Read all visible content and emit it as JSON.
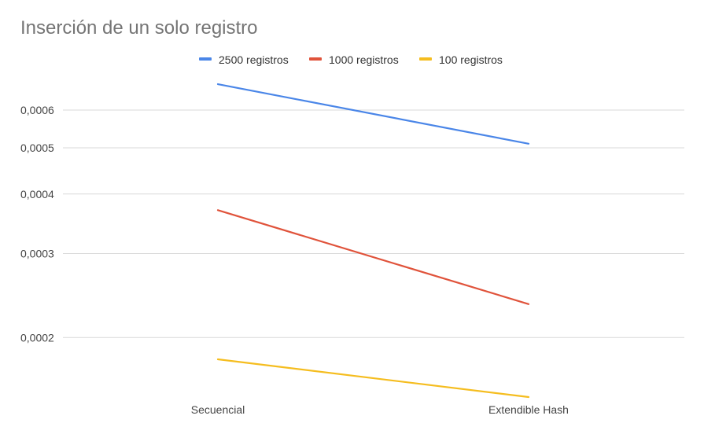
{
  "chart_data": {
    "type": "line",
    "title": "Inserción de un solo registro",
    "xlabel": "",
    "ylabel": "",
    "categories": [
      "Secuencial",
      "Extendible Hash"
    ],
    "y_scale": "log",
    "ylim": [
      0.00015,
      0.00072
    ],
    "y_ticks": [
      0.0002,
      0.0003,
      0.0004,
      0.0005,
      0.0006
    ],
    "y_tick_labels": [
      "0,0002",
      "0,0003",
      "0,0004",
      "0,0005",
      "0,0006"
    ],
    "grid": true,
    "legend_position": "top",
    "series": [
      {
        "name": "2500 registros",
        "color": "#4a86e8",
        "values": [
          0.00068,
          0.00051
        ]
      },
      {
        "name": "1000 registros",
        "color": "#e0533b",
        "values": [
          0.00037,
          0.000235
        ]
      },
      {
        "name": "100 registros",
        "color": "#f5bd1f",
        "values": [
          0.00018,
          0.00015
        ]
      }
    ]
  }
}
